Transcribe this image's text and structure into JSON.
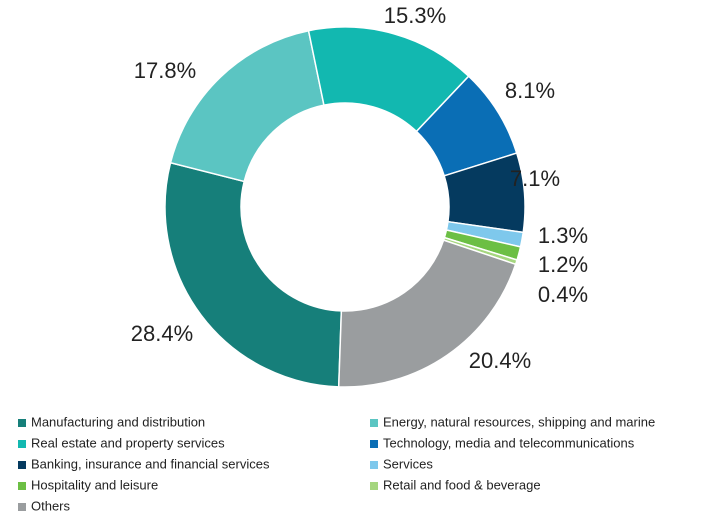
{
  "chart_data": {
    "type": "donut",
    "categories": [
      "Manufacturing and distribution",
      "Energy, natural resources, shipping and marine",
      "Real estate and property services",
      "Technology, media and telecommunications",
      "Banking, insurance and financial services",
      "Services",
      "Hospitality and leisure",
      "Retail and food & beverage",
      "Others"
    ],
    "values": [
      28.4,
      17.8,
      15.3,
      8.1,
      7.1,
      1.3,
      1.2,
      0.4,
      20.4
    ],
    "value_labels": [
      "28.4%",
      "17.8%",
      "15.3%",
      "8.1%",
      "7.1%",
      "1.3%",
      "1.2%",
      "0.4%",
      "20.4%"
    ],
    "colors": [
      "#167f7a",
      "#5bc5c2",
      "#12b8b0",
      "#0a6eb5",
      "#053a5f",
      "#7ec8ec",
      "#6cbf44",
      "#a5d67f",
      "#9a9d9f"
    ],
    "legend": "bottom"
  }
}
